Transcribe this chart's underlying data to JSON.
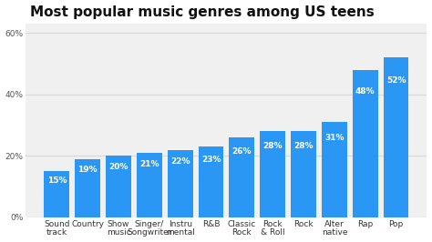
{
  "title": "Most popular music genres among US teens",
  "categories": [
    "Sound\ntrack",
    "Country",
    "Show\nmusic",
    "Singer/\nSongwriter",
    "Instru\nmental",
    "R&B",
    "Classic\nRock",
    "Rock\n& Roll",
    "Rock",
    "Alter\nnative",
    "Rap",
    "Pop"
  ],
  "values": [
    15,
    19,
    20,
    21,
    22,
    23,
    26,
    28,
    28,
    31,
    48,
    52
  ],
  "labels": [
    "15%",
    "19%",
    "20%",
    "21%",
    "22%",
    "23%",
    "26%",
    "28%",
    "28%",
    "31%",
    "48%",
    "52%"
  ],
  "bar_color": "#2b97f5",
  "background_color": "#ffffff",
  "plot_bg_color": "#f0f0f0",
  "title_fontsize": 11,
  "label_fontsize": 6.5,
  "tick_fontsize": 6.5,
  "yticks": [
    0,
    20,
    40,
    60
  ],
  "ylim": [
    0,
    63
  ],
  "grid_color": "#d8d8d8"
}
